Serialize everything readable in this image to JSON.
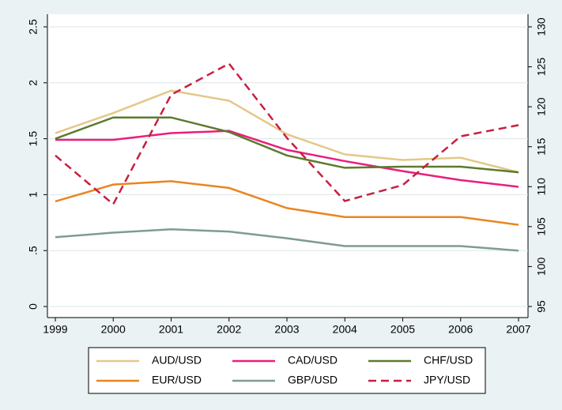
{
  "chart_data": {
    "type": "line",
    "x": [
      1999,
      2000,
      2001,
      2002,
      2003,
      2004,
      2005,
      2006,
      2007
    ],
    "xlim": [
      1999,
      2007
    ],
    "xticks": [
      1999,
      2000,
      2001,
      2002,
      2003,
      2004,
      2005,
      2006,
      2007
    ],
    "ylim": [
      0,
      2.5
    ],
    "yticks": [
      0,
      {
        "value": 0.5,
        "label": ".5"
      },
      1,
      1.5,
      2,
      2.5
    ],
    "y2lim": [
      95,
      130
    ],
    "y2ticks": [
      95,
      100,
      105,
      110,
      115,
      120,
      125,
      130
    ],
    "grid": true,
    "legend": "bottom",
    "series": [
      {
        "name": "AUD/USD",
        "color": "#e3c888",
        "values": [
          1.55,
          1.73,
          1.93,
          1.84,
          1.54,
          1.36,
          1.31,
          1.33,
          1.2
        ]
      },
      {
        "name": "CAD/USD",
        "color": "#ea1e7c",
        "values": [
          1.49,
          1.49,
          1.55,
          1.57,
          1.4,
          1.3,
          1.21,
          1.13,
          1.07
        ]
      },
      {
        "name": "CHF/USD",
        "color": "#5b7b2e",
        "values": [
          1.5,
          1.69,
          1.69,
          1.56,
          1.35,
          1.24,
          1.25,
          1.25,
          1.2
        ]
      },
      {
        "name": "EUR/USD",
        "color": "#ea851f",
        "values": [
          0.94,
          1.09,
          1.12,
          1.06,
          0.88,
          0.8,
          0.8,
          0.8,
          0.73
        ]
      },
      {
        "name": "GBP/USD",
        "color": "#7e9c92",
        "values": [
          0.62,
          0.66,
          0.69,
          0.67,
          0.61,
          0.54,
          0.54,
          0.54,
          0.5
        ]
      },
      {
        "name": "JPY/USD",
        "color": "#c62040",
        "axis": "y2",
        "dashed": true,
        "values": [
          113.9,
          107.8,
          121.5,
          125.4,
          116.1,
          108.2,
          110.2,
          116.3,
          117.7
        ]
      }
    ]
  }
}
